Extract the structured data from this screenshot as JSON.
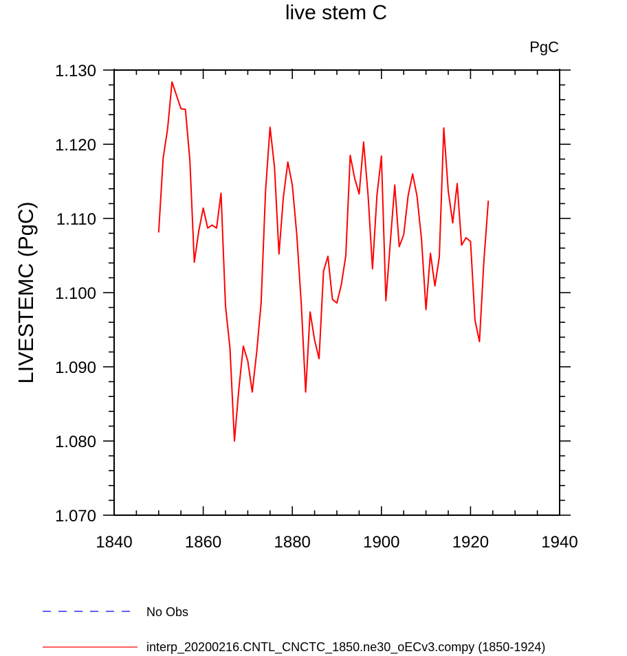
{
  "chart_data": {
    "type": "line",
    "title": "live stem C",
    "units_label": "PgC",
    "ylabel": "LIVESTEMC  (PgC)",
    "xlabel": "",
    "xlim": [
      1840,
      1940
    ],
    "ylim": [
      1.07,
      1.13
    ],
    "x_major_ticks": [
      1840,
      1860,
      1880,
      1900,
      1920,
      1940
    ],
    "x_tick_labels": [
      "1840",
      "1860",
      "1880",
      "1900",
      "1920",
      "1940"
    ],
    "y_major_ticks": [
      1.07,
      1.08,
      1.09,
      1.1,
      1.11,
      1.12,
      1.13
    ],
    "y_tick_labels": [
      "1.070",
      "1.080",
      "1.090",
      "1.100",
      "1.110",
      "1.120",
      "1.130"
    ],
    "grid": false,
    "legend": [
      {
        "label": "No Obs",
        "color": "#0000ff",
        "style": "dashed"
      },
      {
        "label": "interp_20200216.CNTL_CNCTC_1850.ne30_oECv3.compy (1850-1924)",
        "color": "#ff0000",
        "style": "solid"
      }
    ],
    "series": [
      {
        "name": "interp_20200216.CNTL_CNCTC_1850.ne30_oECv3.compy (1850-1924)",
        "color": "#ff0000",
        "x": [
          1850,
          1851,
          1852,
          1853,
          1854,
          1855,
          1856,
          1857,
          1858,
          1859,
          1860,
          1861,
          1862,
          1863,
          1864,
          1865,
          1866,
          1867,
          1868,
          1869,
          1870,
          1871,
          1872,
          1873,
          1874,
          1875,
          1876,
          1877,
          1878,
          1879,
          1880,
          1881,
          1882,
          1883,
          1884,
          1885,
          1886,
          1887,
          1888,
          1889,
          1890,
          1891,
          1892,
          1893,
          1894,
          1895,
          1896,
          1897,
          1898,
          1899,
          1900,
          1901,
          1902,
          1903,
          1904,
          1905,
          1906,
          1907,
          1908,
          1909,
          1910,
          1911,
          1912,
          1913,
          1914,
          1915,
          1916,
          1917,
          1918,
          1919,
          1920,
          1921,
          1922,
          1923,
          1924
        ],
        "y": [
          1.1081,
          1.1181,
          1.1221,
          1.1284,
          1.1266,
          1.1248,
          1.1247,
          1.1178,
          1.1041,
          1.1083,
          1.1114,
          1.1087,
          1.1091,
          1.1087,
          1.1134,
          1.0982,
          1.0925,
          1.08,
          1.087,
          1.0928,
          1.0908,
          1.0866,
          1.092,
          1.0986,
          1.1138,
          1.1223,
          1.1169,
          1.1052,
          1.1129,
          1.1176,
          1.1145,
          1.1078,
          1.0985,
          1.0866,
          1.0974,
          1.0936,
          1.0911,
          1.1029,
          1.1049,
          1.0991,
          1.0986,
          1.1011,
          1.105,
          1.1185,
          1.1154,
          1.1133,
          1.1203,
          1.1131,
          1.1032,
          1.1131,
          1.1184,
          1.0989,
          1.1069,
          1.1145,
          1.1062,
          1.1078,
          1.1131,
          1.116,
          1.113,
          1.1072,
          1.0977,
          1.1053,
          1.1009,
          1.1048,
          1.1222,
          1.1137,
          1.1094,
          1.1147,
          1.1064,
          1.1074,
          1.1069,
          1.0963,
          1.0934,
          1.1042,
          1.1124
        ]
      }
    ]
  }
}
